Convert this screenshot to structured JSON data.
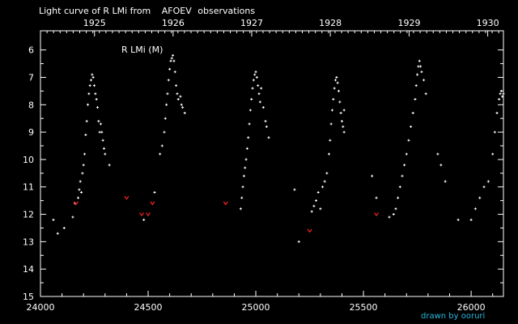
{
  "title": {
    "prefix": "Light curve of R LMi from",
    "source": "AFOEV",
    "suffix": "observations"
  },
  "credit": "drawn by ooruri",
  "colors": {
    "background": "#000000",
    "axes": "#ffffff",
    "observations": "#ffffff",
    "fainter_than": "#ff2020",
    "title_accent": "#ffd400",
    "credit": "#2bb8e0"
  },
  "chart_data": {
    "type": "scatter",
    "series_label": "R LMi (M)",
    "xlim": [
      24000,
      26150
    ],
    "ylim": [
      15,
      5.3
    ],
    "y_inverted": true,
    "x_ticks": [
      24000,
      24500,
      25000,
      25500,
      26000
    ],
    "y_ticks": [
      6,
      7,
      8,
      9,
      10,
      11,
      12,
      13,
      14,
      15
    ],
    "top_axis": {
      "ticks": [
        {
          "label": "1925",
          "x": 24251
        },
        {
          "label": "1926",
          "x": 24616
        },
        {
          "label": "1927",
          "x": 24981
        },
        {
          "label": "1928",
          "x": 25346
        },
        {
          "label": "1929",
          "x": 25712
        },
        {
          "label": "1930",
          "x": 26077
        }
      ]
    },
    "series": [
      {
        "kind": "observation",
        "points": [
          [
            24060,
            12.2
          ],
          [
            24080,
            12.7
          ],
          [
            24110,
            12.5
          ],
          [
            24150,
            12.1
          ],
          [
            24160,
            11.6
          ],
          [
            24175,
            11.4
          ],
          [
            24180,
            11.1
          ],
          [
            24185,
            10.8
          ],
          [
            24190,
            11.2
          ],
          [
            24195,
            10.5
          ],
          [
            24200,
            10.2
          ],
          [
            24205,
            9.8
          ],
          [
            24210,
            9.1
          ],
          [
            24215,
            8.6
          ],
          [
            24220,
            8.0
          ],
          [
            24225,
            7.6
          ],
          [
            24230,
            7.3
          ],
          [
            24235,
            7.1
          ],
          [
            24240,
            6.9
          ],
          [
            24245,
            7.0
          ],
          [
            24250,
            7.3
          ],
          [
            24255,
            7.6
          ],
          [
            24260,
            7.8
          ],
          [
            24265,
            8.1
          ],
          [
            24270,
            8.6
          ],
          [
            24275,
            9.0
          ],
          [
            24280,
            8.7
          ],
          [
            24285,
            9.0
          ],
          [
            24290,
            9.3
          ],
          [
            24295,
            9.6
          ],
          [
            24300,
            9.8
          ],
          [
            24320,
            10.2
          ],
          [
            24480,
            12.2
          ],
          [
            24530,
            11.2
          ],
          [
            24555,
            9.8
          ],
          [
            24565,
            9.5
          ],
          [
            24575,
            9.0
          ],
          [
            24580,
            8.5
          ],
          [
            24585,
            8.0
          ],
          [
            24590,
            7.6
          ],
          [
            24595,
            7.1
          ],
          [
            24600,
            6.7
          ],
          [
            24605,
            6.4
          ],
          [
            24610,
            6.3
          ],
          [
            24615,
            6.2
          ],
          [
            24620,
            6.4
          ],
          [
            24625,
            6.8
          ],
          [
            24630,
            7.3
          ],
          [
            24635,
            7.6
          ],
          [
            24640,
            7.8
          ],
          [
            24650,
            7.7
          ],
          [
            24655,
            8.0
          ],
          [
            24660,
            8.1
          ],
          [
            24670,
            8.3
          ],
          [
            24930,
            11.8
          ],
          [
            24935,
            11.4
          ],
          [
            24940,
            11.0
          ],
          [
            24945,
            10.6
          ],
          [
            24950,
            10.3
          ],
          [
            24955,
            10.0
          ],
          [
            24960,
            9.6
          ],
          [
            24965,
            9.2
          ],
          [
            24970,
            8.7
          ],
          [
            24975,
            8.2
          ],
          [
            24980,
            7.8
          ],
          [
            24985,
            7.4
          ],
          [
            24990,
            7.1
          ],
          [
            24995,
            6.9
          ],
          [
            25000,
            6.8
          ],
          [
            25005,
            7.0
          ],
          [
            25010,
            7.3
          ],
          [
            25015,
            7.6
          ],
          [
            25020,
            7.9
          ],
          [
            25025,
            7.4
          ],
          [
            25035,
            8.1
          ],
          [
            25045,
            8.6
          ],
          [
            25050,
            8.8
          ],
          [
            25060,
            9.2
          ],
          [
            25180,
            11.1
          ],
          [
            25200,
            13.0
          ],
          [
            25260,
            11.9
          ],
          [
            25270,
            11.7
          ],
          [
            25280,
            11.5
          ],
          [
            25290,
            11.2
          ],
          [
            25300,
            11.8
          ],
          [
            25310,
            11.0
          ],
          [
            25320,
            10.8
          ],
          [
            25330,
            10.5
          ],
          [
            25340,
            9.8
          ],
          [
            25345,
            9.3
          ],
          [
            25350,
            8.7
          ],
          [
            25355,
            8.2
          ],
          [
            25360,
            7.8
          ],
          [
            25365,
            7.4
          ],
          [
            25370,
            7.1
          ],
          [
            25375,
            7.0
          ],
          [
            25380,
            7.2
          ],
          [
            25385,
            7.5
          ],
          [
            25390,
            7.9
          ],
          [
            25395,
            8.3
          ],
          [
            25400,
            8.6
          ],
          [
            25405,
            8.8
          ],
          [
            25410,
            9.0
          ],
          [
            25410,
            8.2
          ],
          [
            25540,
            10.6
          ],
          [
            25560,
            11.4
          ],
          [
            25620,
            12.1
          ],
          [
            25640,
            12.0
          ],
          [
            25650,
            11.8
          ],
          [
            25660,
            11.4
          ],
          [
            25670,
            11.0
          ],
          [
            25680,
            10.6
          ],
          [
            25690,
            10.2
          ],
          [
            25700,
            9.8
          ],
          [
            25710,
            9.3
          ],
          [
            25720,
            8.8
          ],
          [
            25730,
            8.3
          ],
          [
            25740,
            7.8
          ],
          [
            25745,
            7.3
          ],
          [
            25750,
            6.9
          ],
          [
            25755,
            6.6
          ],
          [
            25760,
            6.4
          ],
          [
            25765,
            6.6
          ],
          [
            25770,
            6.8
          ],
          [
            25780,
            7.1
          ],
          [
            25790,
            7.6
          ],
          [
            25845,
            9.8
          ],
          [
            25860,
            10.2
          ],
          [
            25880,
            10.8
          ],
          [
            25940,
            12.2
          ],
          [
            26000,
            12.2
          ],
          [
            26020,
            11.8
          ],
          [
            26040,
            11.4
          ],
          [
            26060,
            11.0
          ],
          [
            26080,
            10.8
          ],
          [
            26100,
            9.8
          ],
          [
            26110,
            9.0
          ],
          [
            26120,
            8.3
          ],
          [
            26130,
            7.8
          ],
          [
            26135,
            7.6
          ],
          [
            26140,
            7.5
          ],
          [
            26145,
            7.7
          ],
          [
            26150,
            7.6
          ]
        ]
      },
      {
        "kind": "fainter_than",
        "points": [
          [
            24165,
            11.6
          ],
          [
            24400,
            11.4
          ],
          [
            24470,
            12.0
          ],
          [
            24500,
            12.0
          ],
          [
            24520,
            11.6
          ],
          [
            24860,
            11.6
          ],
          [
            25250,
            12.6
          ],
          [
            25560,
            12.0
          ]
        ]
      }
    ]
  }
}
